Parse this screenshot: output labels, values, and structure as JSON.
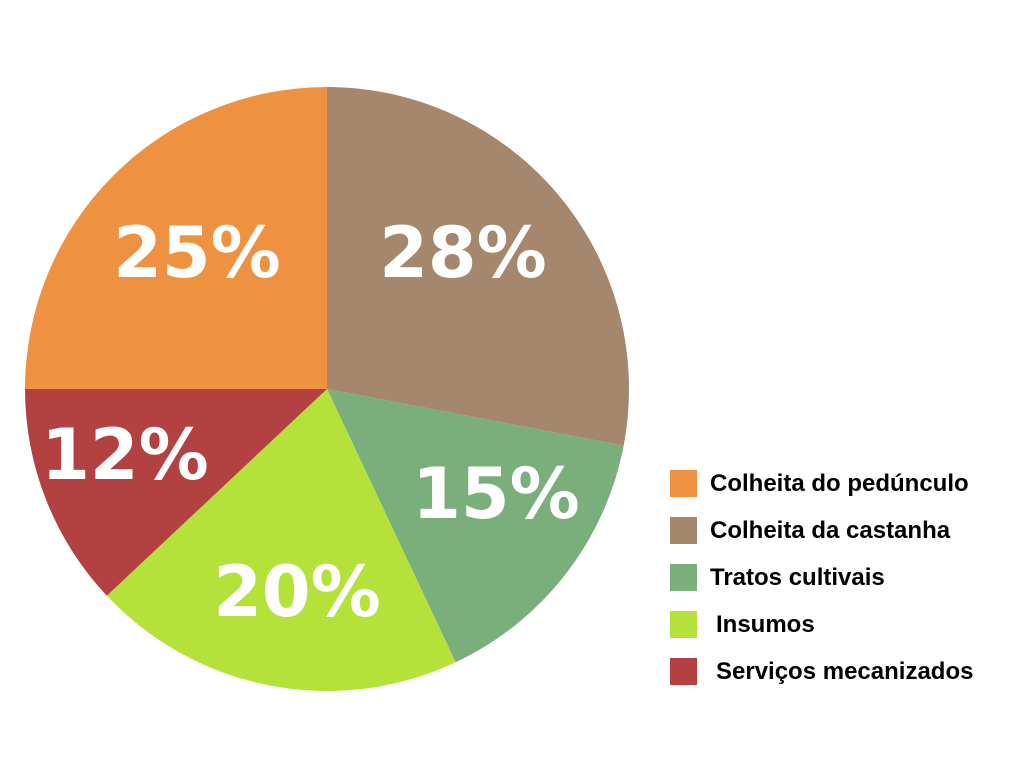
{
  "chart_data": {
    "type": "pie",
    "title": "",
    "legend_position": "bottom-right",
    "slices": [
      {
        "label": "Colheita da castanha",
        "value": 28,
        "display": "28%",
        "color": "#A4876C"
      },
      {
        "label": "Tratos cultivais",
        "value": 15,
        "display": "15%",
        "color": "#7AAE7A"
      },
      {
        "label": "Insumos",
        "value": 20,
        "display": "20%",
        "color": "#B5E23A"
      },
      {
        "label": "Serviços mecanizados",
        "value": 12,
        "display": "12%",
        "color": "#B34141"
      },
      {
        "label": "Colheita do pedúnculo",
        "value": 25,
        "display": "25%",
        "color": "#EE9241"
      }
    ],
    "legend": [
      {
        "label": "Colheita do pedúnculo",
        "color": "#EE9241"
      },
      {
        "label": "Colheita da castanha",
        "color": "#A4876C"
      },
      {
        "label": "Tratos cultivais",
        "color": "#7AAE7A"
      },
      {
        "label": "Insumos",
        "color": "#B5E23A"
      },
      {
        "label": "Serviços mecanizados",
        "color": "#B34141"
      }
    ]
  }
}
